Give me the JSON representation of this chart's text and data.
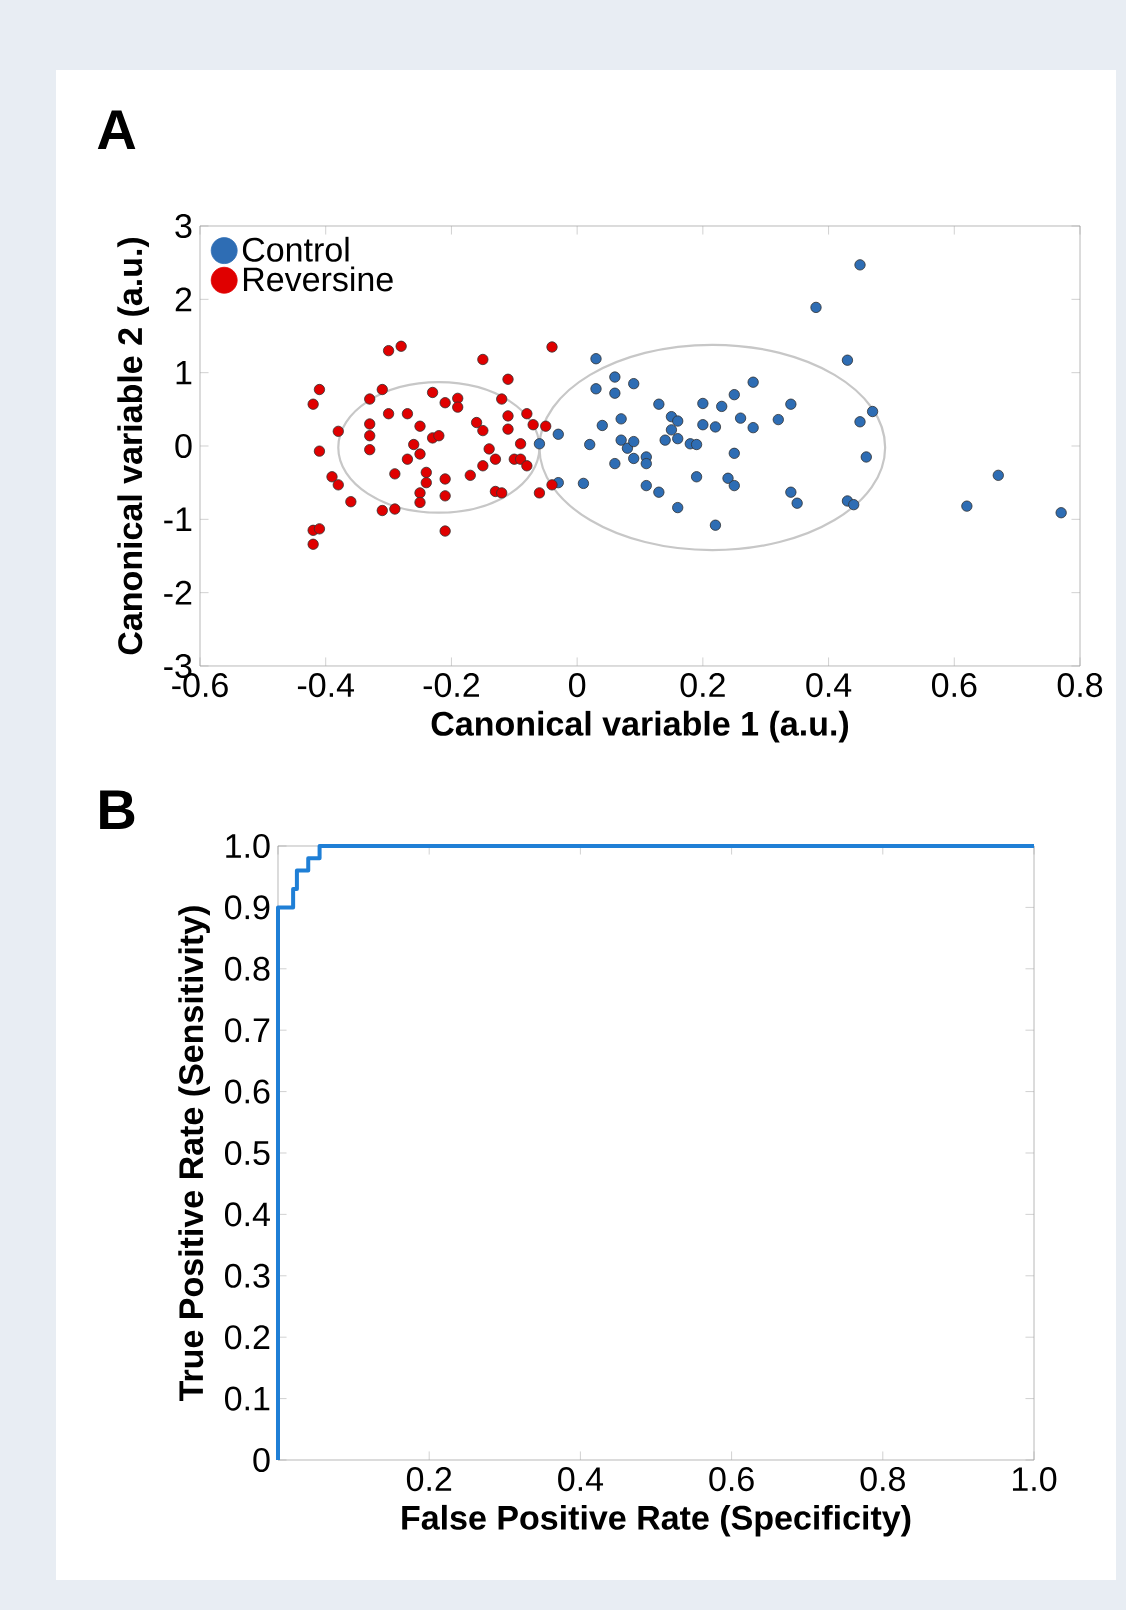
{
  "chart_data": [
    {
      "type": "scatter",
      "annotations": [
        "A"
      ],
      "xlabel": "Canonical variable 1 (a.u.)",
      "ylabel": "Canonical variable 2 (a.u.)",
      "xlim": [
        -0.6,
        0.8
      ],
      "ylim": [
        -3,
        3
      ],
      "xticks": [
        -0.6,
        -0.4,
        -0.2,
        0,
        0.2,
        0.4,
        0.6,
        0.8
      ],
      "yticks": [
        -3,
        -2,
        -1,
        0,
        1,
        2,
        3
      ],
      "legend": "top left",
      "grid": false,
      "series": [
        {
          "name": "Control",
          "color": "#2e6db4",
          "x": [
            -0.06,
            -0.03,
            -0.03,
            0.01,
            0.02,
            0.03,
            0.03,
            0.04,
            0.06,
            0.06,
            0.09,
            0.07,
            0.07,
            0.08,
            0.09,
            0.06,
            0.09,
            0.11,
            0.11,
            0.11,
            0.13,
            0.13,
            0.15,
            0.16,
            0.15,
            0.14,
            0.16,
            0.18,
            0.19,
            0.16,
            0.19,
            0.2,
            0.2,
            0.22,
            0.22,
            0.23,
            0.25,
            0.25,
            0.24,
            0.25,
            0.26,
            0.28,
            0.28,
            0.32,
            0.34,
            0.34,
            0.35,
            0.38,
            0.43,
            0.45,
            0.45,
            0.47,
            0.46,
            0.43,
            0.44,
            0.62,
            0.67,
            0.77
          ],
          "values": [
            0.03,
            0.16,
            -0.5,
            -0.51,
            0.02,
            1.19,
            0.78,
            0.28,
            0.94,
            0.72,
            0.85,
            0.37,
            0.08,
            -0.03,
            0.06,
            -0.24,
            -0.17,
            -0.15,
            -0.24,
            -0.54,
            -0.63,
            0.57,
            0.4,
            0.34,
            0.22,
            0.08,
            0.1,
            0.03,
            0.02,
            -0.84,
            -0.42,
            0.29,
            0.58,
            0.26,
            -1.08,
            0.54,
            0.7,
            -0.1,
            -0.44,
            -0.54,
            0.38,
            0.25,
            0.87,
            0.36,
            0.57,
            -0.63,
            -0.78,
            1.89,
            1.17,
            2.47,
            0.33,
            0.47,
            -0.15,
            -0.75,
            -0.8,
            -0.82,
            -0.4,
            -0.91
          ]
        },
        {
          "name": "Reversine",
          "color": "#e00000",
          "x": [
            -0.42,
            -0.41,
            -0.41,
            -0.38,
            -0.39,
            -0.38,
            -0.36,
            -0.42,
            -0.41,
            -0.42,
            -0.33,
            -0.33,
            -0.33,
            -0.33,
            -0.31,
            -0.3,
            -0.28,
            -0.3,
            -0.27,
            -0.29,
            -0.26,
            -0.25,
            -0.27,
            -0.25,
            -0.24,
            -0.24,
            -0.25,
            -0.25,
            -0.23,
            -0.21,
            -0.19,
            -0.19,
            -0.23,
            -0.22,
            -0.21,
            -0.21,
            -0.21,
            -0.17,
            -0.16,
            -0.15,
            -0.15,
            -0.15,
            -0.14,
            -0.13,
            -0.13,
            -0.12,
            -0.11,
            -0.12,
            -0.11,
            -0.11,
            -0.1,
            -0.09,
            -0.08,
            -0.09,
            -0.08,
            -0.07,
            -0.05,
            -0.04,
            -0.06,
            -0.04,
            -0.31,
            -0.29
          ],
          "values": [
            0.57,
            0.77,
            -0.07,
            0.2,
            -0.42,
            -0.53,
            -0.76,
            -1.15,
            -1.13,
            -1.34,
            -0.05,
            0.3,
            0.14,
            0.64,
            0.77,
            1.3,
            1.36,
            0.44,
            0.44,
            -0.38,
            0.02,
            0.27,
            -0.18,
            -0.11,
            -0.36,
            -0.5,
            -0.64,
            -0.77,
            0.73,
            0.59,
            0.65,
            0.53,
            0.11,
            0.14,
            -0.45,
            -0.68,
            -1.16,
            -0.4,
            0.32,
            1.18,
            0.21,
            -0.27,
            -0.04,
            -0.18,
            -0.62,
            -0.64,
            0.91,
            0.64,
            0.41,
            0.23,
            -0.18,
            -0.18,
            -0.27,
            0.03,
            0.44,
            0.29,
            0.27,
            1.35,
            -0.64,
            -0.53,
            -0.88,
            -0.86
          ]
        }
      ]
    },
    {
      "type": "line",
      "annotations": [
        "B"
      ],
      "xlabel": "False Positive Rate (Specificity)",
      "ylabel": "True Positive Rate (Sensitivity)",
      "xlim": [
        0,
        1
      ],
      "ylim": [
        0,
        1
      ],
      "xticks": [
        {
          "value": 0,
          "label": null
        },
        0.2,
        0.4,
        0.6,
        0.8,
        {
          "value": 1,
          "label": "1.0"
        }
      ],
      "yticks": [
        {
          "value": 0,
          "label": "0"
        },
        0.1,
        0.2,
        0.3,
        0.4,
        0.5,
        0.6,
        0.7,
        0.8,
        0.9,
        {
          "value": 1,
          "label": "1.0"
        }
      ],
      "grid": false,
      "legend": false,
      "series": [
        {
          "color": "#1f7fd6",
          "x": [
            0,
            0,
            0.02,
            0.02,
            0.025,
            0.025,
            0.04,
            0.04,
            0.055,
            0.055,
            1
          ],
          "values": [
            0,
            0.9,
            0.9,
            0.93,
            0.93,
            0.96,
            0.96,
            0.98,
            0.98,
            1.0,
            1.0
          ]
        }
      ]
    }
  ]
}
